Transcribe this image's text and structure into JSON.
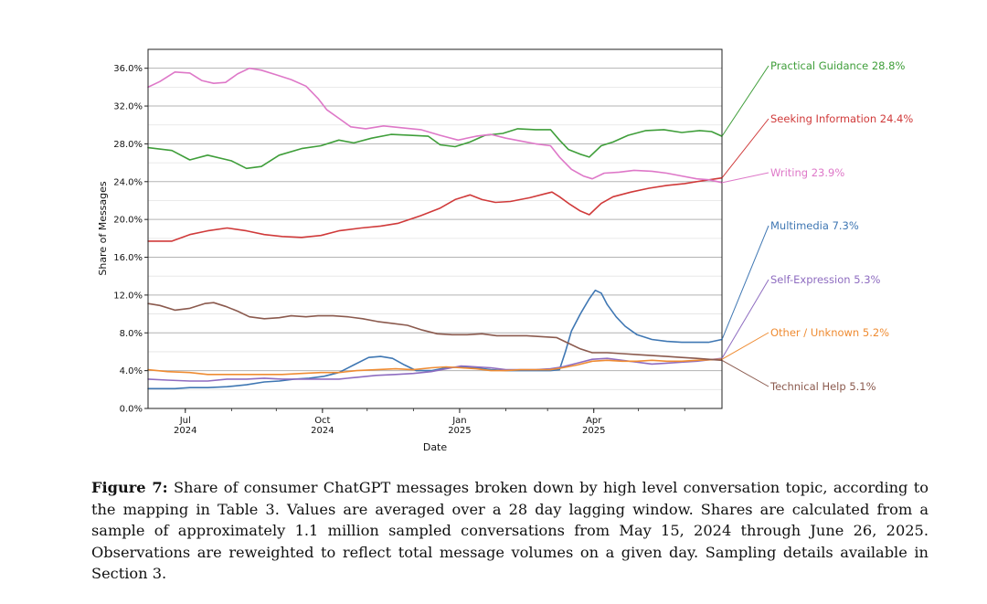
{
  "chart_data": {
    "type": "line",
    "title": "",
    "xlabel": "Date",
    "ylabel": "Share of Messages",
    "ylim": [
      0,
      38
    ],
    "grid": "horizontal",
    "y_ticks": [
      "0.0%",
      "4.0%",
      "8.0%",
      "12.0%",
      "16.0%",
      "20.0%",
      "24.0%",
      "28.0%",
      "32.0%",
      "36.0%"
    ],
    "y_tick_values": [
      0,
      4,
      8,
      12,
      16,
      20,
      24,
      28,
      32,
      36
    ],
    "x_ticks": [
      {
        "month": "Jul",
        "year": "2024",
        "day": 47
      },
      {
        "month": "Oct",
        "year": "2024",
        "day": 139
      },
      {
        "month": "Jan",
        "year": "2025",
        "day": 231
      },
      {
        "month": "Apr",
        "year": "2025",
        "day": 321
      }
    ],
    "x_domain": [
      22,
      407
    ],
    "series": [
      {
        "name": "Practical Guidance",
        "label_value": "28.8%",
        "color": "#3f9e3a",
        "points": [
          [
            22,
            27.6
          ],
          [
            38,
            27.3
          ],
          [
            50,
            26.3
          ],
          [
            62,
            26.8
          ],
          [
            78,
            26.2
          ],
          [
            88,
            25.4
          ],
          [
            98,
            25.6
          ],
          [
            110,
            26.8
          ],
          [
            125,
            27.5
          ],
          [
            138,
            27.8
          ],
          [
            150,
            28.4
          ],
          [
            160,
            28.1
          ],
          [
            172,
            28.6
          ],
          [
            185,
            29.0
          ],
          [
            198,
            28.9
          ],
          [
            210,
            28.8
          ],
          [
            218,
            27.9
          ],
          [
            228,
            27.7
          ],
          [
            238,
            28.2
          ],
          [
            248,
            28.9
          ],
          [
            260,
            29.1
          ],
          [
            270,
            29.6
          ],
          [
            282,
            29.5
          ],
          [
            292,
            29.5
          ],
          [
            298,
            28.4
          ],
          [
            304,
            27.4
          ],
          [
            312,
            26.9
          ],
          [
            318,
            26.6
          ],
          [
            326,
            27.8
          ],
          [
            334,
            28.2
          ],
          [
            344,
            28.9
          ],
          [
            356,
            29.4
          ],
          [
            368,
            29.5
          ],
          [
            380,
            29.2
          ],
          [
            392,
            29.4
          ],
          [
            400,
            29.3
          ],
          [
            407,
            28.8
          ]
        ]
      },
      {
        "name": "Seeking Information",
        "label_value": "24.4%",
        "color": "#d03a3a",
        "points": [
          [
            22,
            17.7
          ],
          [
            38,
            17.7
          ],
          [
            50,
            18.4
          ],
          [
            62,
            18.8
          ],
          [
            75,
            19.1
          ],
          [
            88,
            18.8
          ],
          [
            100,
            18.4
          ],
          [
            112,
            18.2
          ],
          [
            125,
            18.1
          ],
          [
            138,
            18.3
          ],
          [
            150,
            18.8
          ],
          [
            165,
            19.1
          ],
          [
            178,
            19.3
          ],
          [
            190,
            19.6
          ],
          [
            205,
            20.4
          ],
          [
            218,
            21.2
          ],
          [
            228,
            22.1
          ],
          [
            238,
            22.6
          ],
          [
            246,
            22.1
          ],
          [
            255,
            21.8
          ],
          [
            265,
            21.9
          ],
          [
            278,
            22.3
          ],
          [
            288,
            22.7
          ],
          [
            293,
            22.9
          ],
          [
            298,
            22.4
          ],
          [
            305,
            21.6
          ],
          [
            312,
            20.9
          ],
          [
            318,
            20.5
          ],
          [
            326,
            21.7
          ],
          [
            334,
            22.4
          ],
          [
            346,
            22.9
          ],
          [
            358,
            23.3
          ],
          [
            370,
            23.6
          ],
          [
            382,
            23.8
          ],
          [
            394,
            24.1
          ],
          [
            407,
            24.4
          ]
        ]
      },
      {
        "name": "Writing",
        "label_value": "23.9%",
        "color": "#de78c8",
        "points": [
          [
            22,
            34.0
          ],
          [
            30,
            34.6
          ],
          [
            40,
            35.6
          ],
          [
            50,
            35.5
          ],
          [
            58,
            34.7
          ],
          [
            66,
            34.4
          ],
          [
            74,
            34.5
          ],
          [
            82,
            35.4
          ],
          [
            90,
            36.0
          ],
          [
            98,
            35.8
          ],
          [
            108,
            35.3
          ],
          [
            118,
            34.8
          ],
          [
            128,
            34.1
          ],
          [
            136,
            32.8
          ],
          [
            142,
            31.6
          ],
          [
            150,
            30.7
          ],
          [
            158,
            29.8
          ],
          [
            168,
            29.6
          ],
          [
            180,
            29.9
          ],
          [
            192,
            29.7
          ],
          [
            205,
            29.5
          ],
          [
            218,
            28.9
          ],
          [
            230,
            28.4
          ],
          [
            242,
            28.8
          ],
          [
            252,
            29.0
          ],
          [
            262,
            28.6
          ],
          [
            272,
            28.3
          ],
          [
            282,
            28.0
          ],
          [
            292,
            27.8
          ],
          [
            298,
            26.6
          ],
          [
            306,
            25.3
          ],
          [
            314,
            24.6
          ],
          [
            320,
            24.3
          ],
          [
            328,
            24.9
          ],
          [
            338,
            25.0
          ],
          [
            348,
            25.2
          ],
          [
            360,
            25.1
          ],
          [
            370,
            24.9
          ],
          [
            380,
            24.6
          ],
          [
            390,
            24.3
          ],
          [
            398,
            24.2
          ],
          [
            407,
            23.9
          ]
        ]
      },
      {
        "name": "Multimedia",
        "label_value": "7.3%",
        "color": "#3f77b3",
        "points": [
          [
            22,
            2.1
          ],
          [
            30,
            2.1
          ],
          [
            40,
            2.1
          ],
          [
            50,
            2.2
          ],
          [
            62,
            2.2
          ],
          [
            75,
            2.3
          ],
          [
            88,
            2.5
          ],
          [
            100,
            2.8
          ],
          [
            110,
            2.9
          ],
          [
            120,
            3.1
          ],
          [
            130,
            3.2
          ],
          [
            140,
            3.4
          ],
          [
            150,
            3.8
          ],
          [
            160,
            4.6
          ],
          [
            170,
            5.4
          ],
          [
            178,
            5.5
          ],
          [
            186,
            5.3
          ],
          [
            194,
            4.6
          ],
          [
            202,
            4.0
          ],
          [
            212,
            4.0
          ],
          [
            222,
            4.3
          ],
          [
            232,
            4.4
          ],
          [
            242,
            4.3
          ],
          [
            252,
            4.1
          ],
          [
            262,
            4.0
          ],
          [
            272,
            4.0
          ],
          [
            282,
            4.0
          ],
          [
            292,
            4.0
          ],
          [
            298,
            4.1
          ],
          [
            302,
            6.0
          ],
          [
            306,
            8.2
          ],
          [
            312,
            10.0
          ],
          [
            318,
            11.6
          ],
          [
            322,
            12.5
          ],
          [
            326,
            12.2
          ],
          [
            330,
            11.0
          ],
          [
            336,
            9.7
          ],
          [
            342,
            8.7
          ],
          [
            350,
            7.8
          ],
          [
            360,
            7.3
          ],
          [
            370,
            7.1
          ],
          [
            380,
            7.0
          ],
          [
            390,
            7.0
          ],
          [
            398,
            7.0
          ],
          [
            407,
            7.3
          ]
        ]
      },
      {
        "name": "Self-Expression",
        "label_value": "5.3%",
        "color": "#8e6cc0",
        "points": [
          [
            22,
            3.1
          ],
          [
            35,
            3.0
          ],
          [
            50,
            2.9
          ],
          [
            62,
            2.9
          ],
          [
            75,
            3.1
          ],
          [
            88,
            3.1
          ],
          [
            100,
            3.2
          ],
          [
            112,
            3.1
          ],
          [
            125,
            3.1
          ],
          [
            138,
            3.1
          ],
          [
            150,
            3.1
          ],
          [
            162,
            3.3
          ],
          [
            175,
            3.5
          ],
          [
            188,
            3.6
          ],
          [
            200,
            3.7
          ],
          [
            212,
            3.9
          ],
          [
            222,
            4.2
          ],
          [
            232,
            4.5
          ],
          [
            242,
            4.4
          ],
          [
            252,
            4.3
          ],
          [
            262,
            4.1
          ],
          [
            272,
            4.1
          ],
          [
            282,
            4.1
          ],
          [
            292,
            4.2
          ],
          [
            300,
            4.4
          ],
          [
            310,
            4.8
          ],
          [
            320,
            5.2
          ],
          [
            330,
            5.3
          ],
          [
            340,
            5.1
          ],
          [
            350,
            4.9
          ],
          [
            360,
            4.7
          ],
          [
            370,
            4.8
          ],
          [
            380,
            4.9
          ],
          [
            390,
            5.0
          ],
          [
            407,
            5.3
          ]
        ]
      },
      {
        "name": "Other / Unknown",
        "label_value": "5.2%",
        "color": "#ef8c33",
        "points": [
          [
            22,
            4.1
          ],
          [
            35,
            3.9
          ],
          [
            50,
            3.8
          ],
          [
            62,
            3.6
          ],
          [
            75,
            3.6
          ],
          [
            88,
            3.6
          ],
          [
            100,
            3.6
          ],
          [
            112,
            3.6
          ],
          [
            125,
            3.7
          ],
          [
            138,
            3.8
          ],
          [
            150,
            3.8
          ],
          [
            162,
            4.0
          ],
          [
            175,
            4.1
          ],
          [
            188,
            4.2
          ],
          [
            200,
            4.1
          ],
          [
            212,
            4.3
          ],
          [
            222,
            4.4
          ],
          [
            232,
            4.3
          ],
          [
            242,
            4.2
          ],
          [
            252,
            4.0
          ],
          [
            262,
            4.0
          ],
          [
            272,
            4.1
          ],
          [
            282,
            4.1
          ],
          [
            292,
            4.1
          ],
          [
            300,
            4.3
          ],
          [
            310,
            4.6
          ],
          [
            320,
            5.0
          ],
          [
            330,
            5.1
          ],
          [
            340,
            5.0
          ],
          [
            350,
            5.0
          ],
          [
            360,
            5.1
          ],
          [
            370,
            5.0
          ],
          [
            380,
            5.0
          ],
          [
            390,
            5.1
          ],
          [
            407,
            5.2
          ]
        ]
      },
      {
        "name": "Technical Help",
        "label_value": "5.1%",
        "color": "#8b5a4e",
        "points": [
          [
            22,
            11.1
          ],
          [
            30,
            10.9
          ],
          [
            40,
            10.4
          ],
          [
            50,
            10.6
          ],
          [
            60,
            11.1
          ],
          [
            66,
            11.2
          ],
          [
            74,
            10.8
          ],
          [
            82,
            10.3
          ],
          [
            90,
            9.7
          ],
          [
            100,
            9.5
          ],
          [
            110,
            9.6
          ],
          [
            118,
            9.8
          ],
          [
            128,
            9.7
          ],
          [
            136,
            9.8
          ],
          [
            146,
            9.8
          ],
          [
            156,
            9.7
          ],
          [
            166,
            9.5
          ],
          [
            176,
            9.2
          ],
          [
            186,
            9.0
          ],
          [
            196,
            8.8
          ],
          [
            206,
            8.3
          ],
          [
            216,
            7.9
          ],
          [
            226,
            7.8
          ],
          [
            236,
            7.8
          ],
          [
            246,
            7.9
          ],
          [
            256,
            7.7
          ],
          [
            266,
            7.7
          ],
          [
            276,
            7.7
          ],
          [
            286,
            7.6
          ],
          [
            296,
            7.5
          ],
          [
            304,
            6.9
          ],
          [
            312,
            6.3
          ],
          [
            320,
            5.9
          ],
          [
            330,
            5.9
          ],
          [
            340,
            5.8
          ],
          [
            350,
            5.7
          ],
          [
            360,
            5.6
          ],
          [
            370,
            5.5
          ],
          [
            380,
            5.4
          ],
          [
            390,
            5.3
          ],
          [
            407,
            5.1
          ]
        ]
      }
    ]
  },
  "caption": {
    "label": "Figure 7:",
    "text": "Share of consumer ChatGPT messages broken down by high level conversation topic, according to the mapping in Table 3. Values are averaged over a 28 day lagging window. Shares are calculated from a sample of approximately 1.1 million sampled conversations from May 15, 2024 through June 26, 2025. Observations are reweighted to reflect total message volumes on a given day. Sampling details available in Section 3."
  }
}
